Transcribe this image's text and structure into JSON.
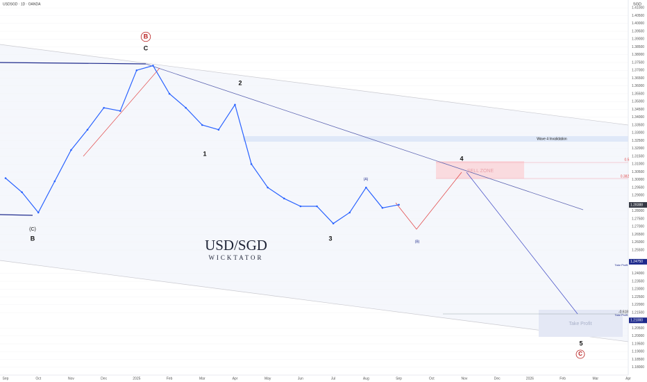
{
  "chart_data": {
    "type": "line",
    "title": "USDSGD · 1D · OANDA",
    "currency": "SGD",
    "brand": "USD/SGD",
    "brand_sub": "WICKTATOR",
    "categories": [
      "Sep",
      null,
      "Oct",
      null,
      "Nov",
      null,
      "Dec",
      null,
      "2025",
      null,
      "Feb",
      null,
      "Mar",
      null,
      "Apr",
      null,
      "May",
      null,
      "Jun",
      null,
      "Jul",
      null,
      "Aug",
      null,
      "Sep",
      null,
      "Oct",
      null,
      "Nov",
      null,
      "Dec",
      null,
      "2026",
      null,
      "Feb",
      null,
      "Mar",
      null,
      "Apr",
      null
    ],
    "series": [
      {
        "name": "USDSGD",
        "color": "#2962ff",
        "values": [
          1.301,
          1.292,
          1.279,
          1.299,
          1.319,
          1.332,
          1.346,
          1.344,
          1.37,
          1.373,
          1.355,
          1.346,
          1.335,
          1.332,
          1.348,
          1.31,
          1.295,
          1.288,
          1.283,
          1.283,
          1.272,
          1.279,
          1.295,
          1.282,
          1.284,
          null,
          null,
          null,
          null,
          null,
          null,
          null,
          null,
          null,
          null,
          null,
          null,
          null,
          null,
          null
        ]
      }
    ],
    "ylim": [
      1.175,
      1.415
    ],
    "yticks": [
      {
        "value": 1.18,
        "label": "1.18000"
      },
      {
        "value": 1.185,
        "label": "1.18500"
      },
      {
        "value": 1.19,
        "label": "1.19000"
      },
      {
        "value": 1.195,
        "label": "1.19500"
      },
      {
        "value": 1.2,
        "label": "1.20000"
      },
      {
        "value": 1.205,
        "label": "1.20500"
      },
      {
        "value": 1.215,
        "label": "1.21500"
      },
      {
        "value": 1.22,
        "label": "1.22000"
      },
      {
        "value": 1.225,
        "label": "1.22500"
      },
      {
        "value": 1.23,
        "label": "1.23000"
      },
      {
        "value": 1.235,
        "label": "1.23500"
      },
      {
        "value": 1.24,
        "label": "1.24000"
      },
      {
        "value": 1.255,
        "label": "1.25500"
      },
      {
        "value": 1.26,
        "label": "1.26000"
      },
      {
        "value": 1.265,
        "label": "1.26500"
      },
      {
        "value": 1.27,
        "label": "1.27000"
      },
      {
        "value": 1.275,
        "label": "1.27500"
      },
      {
        "value": 1.28,
        "label": "1.28000"
      },
      {
        "value": 1.29,
        "label": "1.29000"
      },
      {
        "value": 1.295,
        "label": "1.29500"
      },
      {
        "value": 1.3,
        "label": "1.30000"
      },
      {
        "value": 1.305,
        "label": "1.30500"
      },
      {
        "value": 1.31,
        "label": "1.31000"
      },
      {
        "value": 1.315,
        "label": "1.31500"
      },
      {
        "value": 1.32,
        "label": "1.32000"
      },
      {
        "value": 1.325,
        "label": "1.32500"
      },
      {
        "value": 1.33,
        "label": "1.33000"
      },
      {
        "value": 1.335,
        "label": "1.33500"
      },
      {
        "value": 1.34,
        "label": "1.34000"
      },
      {
        "value": 1.345,
        "label": "1.34500"
      },
      {
        "value": 1.35,
        "label": "1.35000"
      },
      {
        "value": 1.355,
        "label": "1.35500"
      },
      {
        "value": 1.36,
        "label": "1.36000"
      },
      {
        "value": 1.365,
        "label": "1.36500"
      },
      {
        "value": 1.37,
        "label": "1.37000"
      },
      {
        "value": 1.375,
        "label": "1.37500"
      },
      {
        "value": 1.38,
        "label": "1.38000"
      },
      {
        "value": 1.385,
        "label": "1.38500"
      },
      {
        "value": 1.39,
        "label": "1.39000"
      },
      {
        "value": 1.395,
        "label": "1.39500"
      },
      {
        "value": 1.4,
        "label": "1.40000"
      },
      {
        "value": 1.405,
        "label": "1.40500"
      },
      {
        "value": 1.41,
        "label": "1.41000"
      }
    ],
    "price_tags": [
      {
        "value": 1.28388,
        "label": "1.28388",
        "color": "#363a45"
      },
      {
        "value": 1.2475,
        "label": "1.24750",
        "color": "#1e2a8c"
      },
      {
        "value": 1.21,
        "label": "1.21000",
        "color": "#1e2a8c"
      }
    ],
    "annotations": [
      "B",
      "C",
      "2",
      "1",
      "3",
      "4",
      "5",
      "C",
      "(C)",
      "B",
      "Wave 4 Invalidation",
      "SELL ZONE",
      "Take Profit",
      "0.5",
      "0.382",
      "-0.618",
      "Take Profit",
      "Take Profit",
      "(A)",
      "(B)"
    ]
  }
}
